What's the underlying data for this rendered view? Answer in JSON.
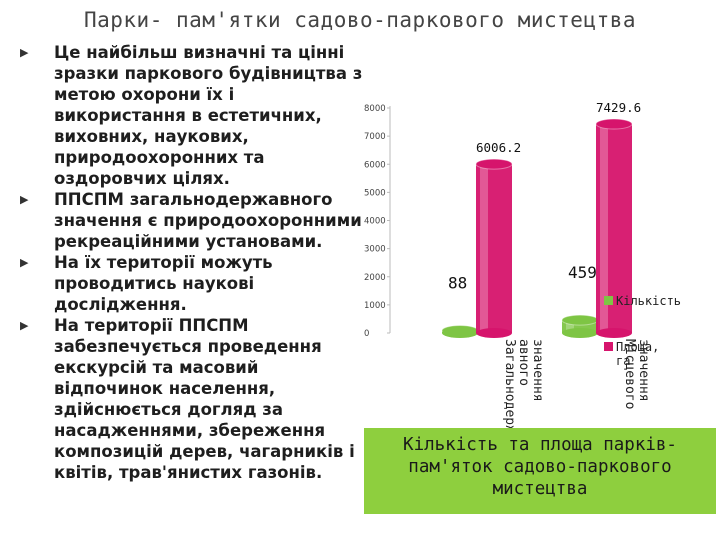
{
  "page": {
    "title": "Парки- пам'ятки садово-паркового мистецтва",
    "bullets": [
      "Це найбільш визначні та цінні зразки паркового будівництва з метою охорони їх і використання в естетичних, виховних, наукових, природоохоронних та оздоровчих цілях.",
      "ППСПМ загальнодержавного значення є природоохоронними рекреаційними установами.",
      "На їх території можуть проводитись наукові дослідження.",
      "На території ППСПМ забезпечується проведення екскурсій та масовий відпочинок населення, здійснюється догляд за насадженнями, збереження композицій дерев, чагарників і квітів, трав'янистих газонів."
    ],
    "caption": "Кількість та площа парків-пам'яток садово-паркового мистецтва"
  },
  "colors": {
    "series_count": "#7ec544",
    "series_area": "#d6146c",
    "caption_bg": "#8ecf3e"
  },
  "chart_data": {
    "type": "bar",
    "categories": [
      "Загальнодерж авного значення",
      "Місцевого значення"
    ],
    "series": [
      {
        "name": "Кількість",
        "values": [
          88,
          459
        ],
        "data_labels": [
          "88",
          "459"
        ]
      },
      {
        "name": "Площа, га",
        "values": [
          6006.2,
          7429.6
        ],
        "data_labels": [
          "6006.2",
          "7429.6"
        ]
      }
    ],
    "y_ticks": [
      "0",
      "1000",
      "2000",
      "3000",
      "4000",
      "5000",
      "6000",
      "7000",
      "8000"
    ],
    "ylim": [
      0,
      8000
    ],
    "legend_position": "right",
    "grid": false
  }
}
